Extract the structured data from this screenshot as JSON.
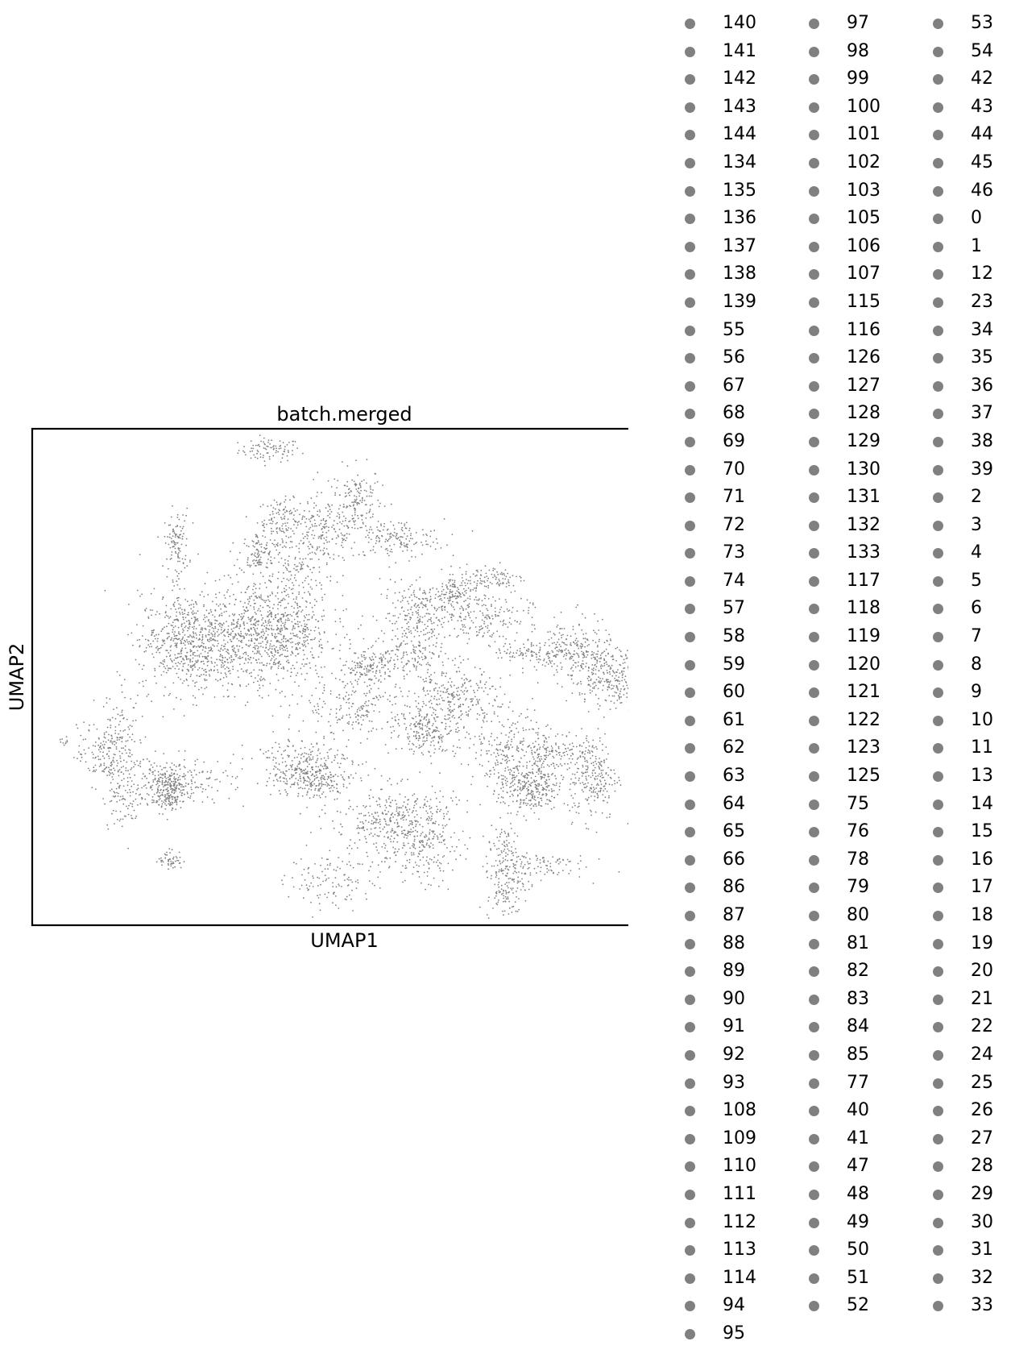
{
  "chart_data": {
    "type": "scatter",
    "title": "batch.merged",
    "xlabel": "UMAP1",
    "ylabel": "UMAP2",
    "point_color": "#808080",
    "grid": false,
    "ticks": false,
    "legend_position": "right, outside plot, 3 columns",
    "legend": [
      "140",
      "141",
      "142",
      "143",
      "144",
      "134",
      "135",
      "136",
      "137",
      "138",
      "139",
      "55",
      "56",
      "67",
      "68",
      "69",
      "70",
      "71",
      "72",
      "73",
      "74",
      "57",
      "58",
      "59",
      "60",
      "61",
      "62",
      "63",
      "64",
      "65",
      "66",
      "86",
      "87",
      "88",
      "89",
      "90",
      "91",
      "92",
      "93",
      "108",
      "109",
      "110",
      "111",
      "112",
      "113",
      "114",
      "94",
      "95",
      "97",
      "98",
      "99",
      "100",
      "101",
      "102",
      "103",
      "105",
      "106",
      "107",
      "115",
      "116",
      "126",
      "127",
      "128",
      "129",
      "130",
      "131",
      "132",
      "133",
      "117",
      "118",
      "119",
      "120",
      "121",
      "122",
      "123",
      "125",
      "75",
      "76",
      "78",
      "79",
      "80",
      "81",
      "82",
      "83",
      "84",
      "85",
      "77",
      "40",
      "41",
      "47",
      "48",
      "49",
      "50",
      "51",
      "52",
      "53",
      "54",
      "42",
      "43",
      "44",
      "45",
      "46",
      "0",
      "1",
      "12",
      "23",
      "34",
      "35",
      "36",
      "37",
      "38",
      "39",
      "2",
      "3",
      "4",
      "5",
      "6",
      "7",
      "8",
      "9",
      "10",
      "11",
      "13",
      "14",
      "15",
      "16",
      "17",
      "18",
      "19",
      "20",
      "21",
      "22",
      "24",
      "25",
      "26",
      "27",
      "28",
      "29",
      "30",
      "31",
      "32",
      "33"
    ],
    "legend_columns": [
      48,
      47,
      47
    ],
    "clusters": [
      {
        "cx": 0.38,
        "cy": 0.96,
        "rx": 0.025,
        "ry": 0.012,
        "n": 90
      },
      {
        "cx": 0.52,
        "cy": 0.86,
        "rx": 0.02,
        "ry": 0.035,
        "n": 140
      },
      {
        "cx": 0.4,
        "cy": 0.82,
        "rx": 0.02,
        "ry": 0.02,
        "n": 110
      },
      {
        "cx": 0.47,
        "cy": 0.8,
        "rx": 0.03,
        "ry": 0.035,
        "n": 170
      },
      {
        "cx": 0.58,
        "cy": 0.78,
        "rx": 0.04,
        "ry": 0.02,
        "n": 160
      },
      {
        "cx": 0.36,
        "cy": 0.75,
        "rx": 0.015,
        "ry": 0.02,
        "n": 90
      },
      {
        "cx": 0.42,
        "cy": 0.73,
        "rx": 0.03,
        "ry": 0.04,
        "n": 130
      },
      {
        "cx": 0.23,
        "cy": 0.77,
        "rx": 0.01,
        "ry": 0.035,
        "n": 110
      },
      {
        "cx": 0.63,
        "cy": 0.63,
        "rx": 0.035,
        "ry": 0.03,
        "n": 230
      },
      {
        "cx": 0.68,
        "cy": 0.67,
        "rx": 0.02,
        "ry": 0.02,
        "n": 120
      },
      {
        "cx": 0.73,
        "cy": 0.62,
        "rx": 0.035,
        "ry": 0.025,
        "n": 150
      },
      {
        "cx": 0.6,
        "cy": 0.55,
        "rx": 0.03,
        "ry": 0.03,
        "n": 160
      },
      {
        "cx": 0.74,
        "cy": 0.7,
        "rx": 0.025,
        "ry": 0.015,
        "n": 90
      },
      {
        "cx": 0.25,
        "cy": 0.57,
        "rx": 0.04,
        "ry": 0.05,
        "n": 650
      },
      {
        "cx": 0.38,
        "cy": 0.59,
        "rx": 0.05,
        "ry": 0.055,
        "n": 900
      },
      {
        "cx": 0.87,
        "cy": 0.55,
        "rx": 0.03,
        "ry": 0.035,
        "n": 230
      },
      {
        "cx": 0.94,
        "cy": 0.5,
        "rx": 0.035,
        "ry": 0.03,
        "n": 300
      },
      {
        "cx": 0.8,
        "cy": 0.55,
        "rx": 0.03,
        "ry": 0.01,
        "n": 90
      },
      {
        "cx": 0.67,
        "cy": 0.45,
        "rx": 0.04,
        "ry": 0.04,
        "n": 320
      },
      {
        "cx": 0.63,
        "cy": 0.39,
        "rx": 0.025,
        "ry": 0.025,
        "n": 170
      },
      {
        "cx": 0.52,
        "cy": 0.44,
        "rx": 0.04,
        "ry": 0.035,
        "n": 200
      },
      {
        "cx": 0.54,
        "cy": 0.52,
        "rx": 0.02,
        "ry": 0.015,
        "n": 120
      },
      {
        "cx": 0.14,
        "cy": 0.37,
        "rx": 0.02,
        "ry": 0.05,
        "n": 120
      },
      {
        "cx": 0.23,
        "cy": 0.29,
        "rx": 0.045,
        "ry": 0.025,
        "n": 180
      },
      {
        "cx": 0.22,
        "cy": 0.27,
        "rx": 0.015,
        "ry": 0.02,
        "n": 220
      },
      {
        "cx": 0.43,
        "cy": 0.33,
        "rx": 0.04,
        "ry": 0.025,
        "n": 200
      },
      {
        "cx": 0.45,
        "cy": 0.29,
        "rx": 0.03,
        "ry": 0.02,
        "n": 210
      },
      {
        "cx": 0.58,
        "cy": 0.21,
        "rx": 0.05,
        "ry": 0.035,
        "n": 330
      },
      {
        "cx": 0.62,
        "cy": 0.16,
        "rx": 0.03,
        "ry": 0.04,
        "n": 200
      },
      {
        "cx": 0.48,
        "cy": 0.09,
        "rx": 0.035,
        "ry": 0.03,
        "n": 120
      },
      {
        "cx": 0.77,
        "cy": 0.35,
        "rx": 0.03,
        "ry": 0.04,
        "n": 230
      },
      {
        "cx": 0.8,
        "cy": 0.27,
        "rx": 0.025,
        "ry": 0.025,
        "n": 280
      },
      {
        "cx": 0.9,
        "cy": 0.3,
        "rx": 0.02,
        "ry": 0.045,
        "n": 230
      },
      {
        "cx": 0.84,
        "cy": 0.35,
        "rx": 0.03,
        "ry": 0.02,
        "n": 120
      },
      {
        "cx": 0.76,
        "cy": 0.1,
        "rx": 0.015,
        "ry": 0.05,
        "n": 220
      },
      {
        "cx": 0.81,
        "cy": 0.12,
        "rx": 0.04,
        "ry": 0.015,
        "n": 90
      },
      {
        "cx": 0.11,
        "cy": 0.34,
        "rx": 0.02,
        "ry": 0.03,
        "n": 120
      },
      {
        "cx": 0.22,
        "cy": 0.13,
        "rx": 0.01,
        "ry": 0.01,
        "n": 50
      },
      {
        "cx": 0.05,
        "cy": 0.37,
        "rx": 0.004,
        "ry": 0.004,
        "n": 10
      },
      {
        "cx": 0.15,
        "cy": 0.26,
        "rx": 0.02,
        "ry": 0.035,
        "n": 90
      }
    ]
  }
}
